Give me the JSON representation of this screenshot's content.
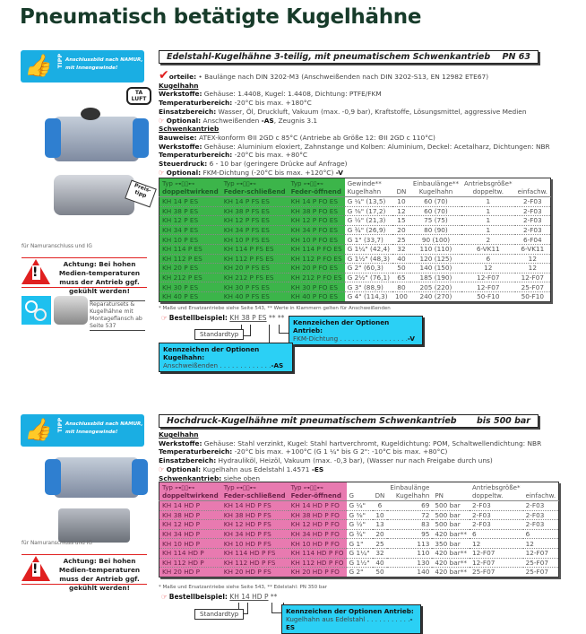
{
  "page_title": "Pneumatisch betätigte Kugelhähne",
  "tipp": {
    "label": "TIPP",
    "message_1": "Anschlussbild nach NAMUR,",
    "message_2": "mit Innengewinde!"
  },
  "ta_luft": "TA LUFT",
  "section1": {
    "title": "Edelstahl-Kugelhähne 3-teilig, mit pneumatischem Schwenkantrieb",
    "rating": "PN 63",
    "vorteile_label": "orteile:",
    "vorteile": "• Baulänge nach DIN 3202-M3 (Anschweißenden nach DIN 3202-S13, EN 12982 ETE67)",
    "kugelhahn": "Kugelhahn",
    "lines_kh": [
      [
        "Werkstoffe:",
        "Gehäuse: 1.4408, Kugel: 1.4408, Dichtung: PTFE/FKM"
      ],
      [
        "Temperaturbereich:",
        "-20°C bis max. +180°C"
      ],
      [
        "Einsatzbereich:",
        "Wasser, Öl, Druckluft, Vakuum (max. -0,9 bar), Kraftstoffe, Lösungsmittel, aggressive Medien"
      ]
    ],
    "optional_kh": [
      "Optional:",
      "Anschweißenden ",
      "-AS",
      ", Zeugnis 3.1"
    ],
    "schwenkantrieb": "Schwenkantrieb",
    "lines_sa": [
      [
        "Bauweise:",
        "ATEX-konform ⚙II 2GD c 85°C (Antriebe ab Größe 12: ⚙II 2GD c 110°C)"
      ],
      [
        "Werkstoffe:",
        "Gehäuse: Aluminium eloxiert, Zahnstange und Kolben: Aluminium, Deckel: Acetalharz, Dichtungen: NBR"
      ],
      [
        "Temperaturbereich:",
        "-20°C bis max. +80°C"
      ],
      [
        "Steuerdruck:",
        "6 - 10 bar (geringere Drücke auf Anfrage)"
      ]
    ],
    "optional_sa": [
      "Optional:",
      "FKM-Dichtung (-20°C bis max. +120°C) ",
      "-V"
    ],
    "table": {
      "headers": [
        [
          "Typ",
          "doppeltwirkend"
        ],
        [
          "Typ",
          "Feder-schließend"
        ],
        [
          "Typ",
          "Feder-öffnend"
        ],
        [
          "Gewinde**",
          "Kugelhahn"
        ],
        [
          "",
          "DN"
        ],
        [
          "Einbaulänge**",
          "Kugelhahn"
        ],
        [
          "Antriebsgröße*",
          "doppeltw."
        ],
        [
          "",
          "einfachw."
        ]
      ],
      "rows": [
        [
          "KH 14 P ES",
          "KH 14 P FS ES",
          "KH 14 P FO ES",
          "G ¼\" (13,5)",
          "10",
          "60 (70)",
          "1",
          "2-F03"
        ],
        [
          "KH 38 P ES",
          "KH 38 P FS ES",
          "KH 38 P FO ES",
          "G ⅜\" (17,2)",
          "12",
          "60 (70)",
          "1",
          "2-F03"
        ],
        [
          "KH 12 P ES",
          "KH 12 P FS ES",
          "KH 12 P FO ES",
          "G ½\" (21,3)",
          "15",
          "75 (75)",
          "1",
          "2-F03"
        ],
        [
          "KH 34 P ES",
          "KH 34 P FS ES",
          "KH 34 P FO ES",
          "G ¾\" (26,9)",
          "20",
          "80 (90)",
          "1",
          "2-F03"
        ],
        [
          "KH 10 P ES",
          "KH 10 P FS ES",
          "KH 10 P FO ES",
          "G 1\" (33,7)",
          "25",
          "90 (100)",
          "2",
          "6-F04"
        ],
        [
          "KH 114 P ES",
          "KH 114 P FS ES",
          "KH 114 P FO ES",
          "G 1¼\" (42,4)",
          "32",
          "110 (110)",
          "6-VK11",
          "6-VK11"
        ],
        [
          "KH 112 P ES",
          "KH 112 P FS ES",
          "KH 112 P FO ES",
          "G 1½\" (48,3)",
          "40",
          "120 (125)",
          "6",
          "12"
        ],
        [
          "KH 20 P ES",
          "KH 20 P FS ES",
          "KH 20 P FO ES",
          "G 2\" (60,3)",
          "50",
          "140 (150)",
          "12",
          "12"
        ],
        [
          "KH 212 P ES",
          "KH 212 P FS ES",
          "KH 212 P FO ES",
          "G 2½\" (76,1)",
          "65",
          "185 (190)",
          "12-F07",
          "12-F07"
        ],
        [
          "KH 30 P ES",
          "KH 30 P FS ES",
          "KH 30 P FO ES",
          "G 3\" (88,9)",
          "80",
          "205 (220)",
          "12-F07",
          "25-F07"
        ],
        [
          "KH 40 P ES",
          "KH 40 P FS ES",
          "KH 40 P FO ES",
          "G 4\" (114,3)",
          "100",
          "240 (270)",
          "50-F10",
          "50-F10"
        ]
      ]
    },
    "footnote": "* Maße und Ersatzantriebe siehe Seite 543, ** Werte in Klammern gelten für Anschweißenden",
    "bestell_label": "Bestellbeispiel:",
    "bestell_value": "KH 38 P ES",
    "bestell_suffix": "** **",
    "standardtyp": "Standardtyp",
    "box_antrieb": {
      "title": "Kennzeichen der Optionen Antrieb:",
      "item": "FKM-Dichtung . . . . . . . . . . . . . . . . .",
      "code": "-V"
    },
    "box_kugelhahn": {
      "title": "Kennzeichen der Optionen Kugelhahn:",
      "item": "Anschweißenden . . . . . . . . . . . . .",
      "code": "-AS"
    }
  },
  "left1": {
    "namur": "für Namuranschluss und IG",
    "warning": "Achtung: Bei hohen Medien-temperaturen muss der Antrieb ggf. gekühlt werden!",
    "repair": "Reparatursets & Kugelhähne mit Montageflansch ab Seite 537"
  },
  "section2": {
    "title": "Hochdruck-Kugelhähne mit pneumatischem Schwenkantrieb",
    "rating": "bis 500 bar",
    "kugelhahn": "Kugelhahn",
    "lines": [
      [
        "Werkstoffe:",
        "Gehäuse: Stahl verzinkt, Kugel: Stahl hartverchromt, Kugeldichtung: POM, Schaltwellendichtung: NBR"
      ],
      [
        "Temperaturbereich:",
        "-20°C bis max. +100°C (G 1 ¼\" bis G 2\": -10°C bis max. +80°C)"
      ],
      [
        "Einsatzbereich:",
        "Hydrauliköl, Heizöl, Vakuum (max. -0,3 bar), (Wasser nur nach Freigabe durch uns)"
      ]
    ],
    "optional": [
      "Optional:",
      "Kugelhahn aus Edelstahl 1.4571 ",
      "-ES"
    ],
    "schwenkantrieb": "Schwenkantrieb:",
    "schwenk_text": "siehe oben",
    "table": {
      "headers": [
        [
          "Typ",
          "doppeltwirkend"
        ],
        [
          "Typ",
          "Feder-schließend"
        ],
        [
          "Typ",
          "Feder-öffnend"
        ],
        [
          "",
          "G"
        ],
        [
          "",
          "DN"
        ],
        [
          "Einbaulänge",
          "Kugelhahn"
        ],
        [
          "",
          "PN"
        ],
        [
          "Antriebsgröße*",
          "doppeltw."
        ],
        [
          "",
          "einfachw."
        ]
      ],
      "rows": [
        [
          "KH 14 HD P",
          "KH 14 HD P FS",
          "KH 14 HD P FO",
          "G ¼\"",
          "6",
          "69",
          "500 bar",
          "2-F03",
          "2-F03"
        ],
        [
          "KH 38 HD P",
          "KH 38 HD P FS",
          "KH 38 HD P FO",
          "G ⅜\"",
          "10",
          "72",
          "500 bar",
          "2-F03",
          "2-F03"
        ],
        [
          "KH 12 HD P",
          "KH 12 HD P FS",
          "KH 12 HD P FO",
          "G ½\"",
          "13",
          "83",
          "500 bar",
          "2-F03",
          "2-F03"
        ],
        [
          "KH 34 HD P",
          "KH 34 HD P FS",
          "KH 34 HD P FO",
          "G ¾\"",
          "20",
          "95",
          "420 bar**",
          "6",
          "6"
        ],
        [
          "KH 10 HD P",
          "KH 10 HD P FS",
          "KH 10 HD P FO",
          "G 1\"",
          "25",
          "113",
          "350 bar",
          "12",
          "12"
        ],
        [
          "KH 114 HD P",
          "KH 114 HD P FS",
          "KH 114 HD P FO",
          "G 1¼\"",
          "32",
          "110",
          "420 bar**",
          "12-F07",
          "12-F07"
        ],
        [
          "KH 112 HD P",
          "KH 112 HD P FS",
          "KH 112 HD P FO",
          "G 1½\"",
          "40",
          "130",
          "420 bar**",
          "12-F07",
          "25-F07"
        ],
        [
          "KH 20 HD P",
          "KH 20 HD P FS",
          "KH 20 HD P FO",
          "G 2\"",
          "50",
          "140",
          "420 bar**",
          "25-F07",
          "25-F07"
        ]
      ]
    },
    "footnote": "* Maße und Ersatzantriebe siehe Seite 543, ** Edelstahl: PN 350 bar",
    "bestell_label": "Bestellbeispiel:",
    "bestell_value": "KH 14 HD P",
    "bestell_suffix": "**",
    "standardtyp": "Standardtyp",
    "box_antrieb": {
      "title": "Kennzeichen der Optionen Antrieb:",
      "item": "Kugelhahn aus Edelstahl . . . . . . . . . . .",
      "code": "-ES"
    }
  },
  "left2": {
    "namur": "für Namuranschluss und IG",
    "warning": "Achtung: Bei hohen Medien-temperaturen muss der Antrieb ggf. gekühlt werden!"
  },
  "colors": {
    "green": "#3cb54a",
    "pink": "#e87ab0",
    "cyan": "#2bd0f5",
    "tipp": "#1aaee3",
    "red": "#e02020"
  }
}
